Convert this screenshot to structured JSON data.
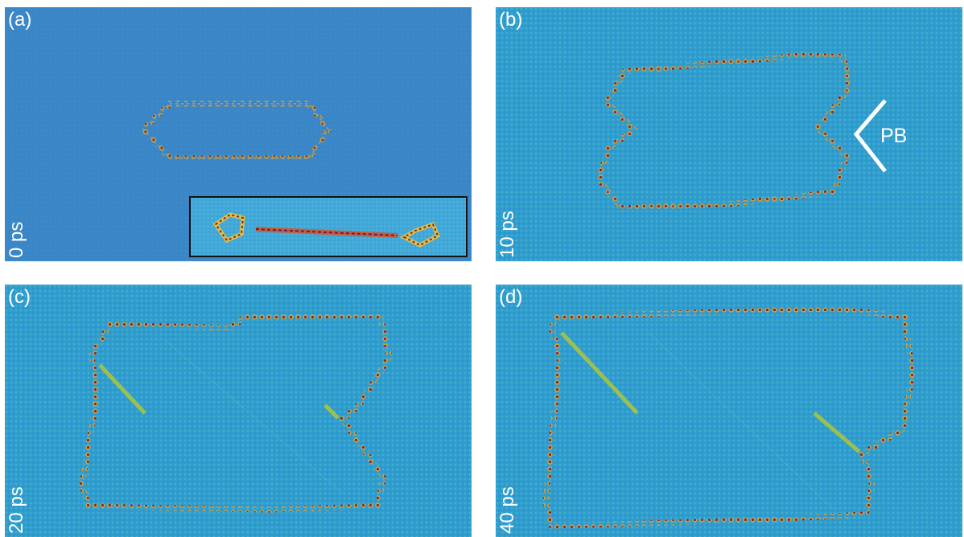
{
  "panels": [
    {
      "id": "a",
      "label": "(a)",
      "time": "0 ps"
    },
    {
      "id": "b",
      "label": "(b)",
      "time": "10 ps",
      "annotation": "PB"
    },
    {
      "id": "c",
      "label": "(c)",
      "time": "20 ps"
    },
    {
      "id": "d",
      "label": "(d)",
      "time": "40 ps"
    }
  ],
  "colors": {
    "background_a": "#3a86c6",
    "background_bcd": "#2f9cd0",
    "atom_warm": "#d2a045",
    "atom_dark": "#7a2a3a",
    "inset_border": "#111111",
    "annotation": "#ffffff"
  }
}
